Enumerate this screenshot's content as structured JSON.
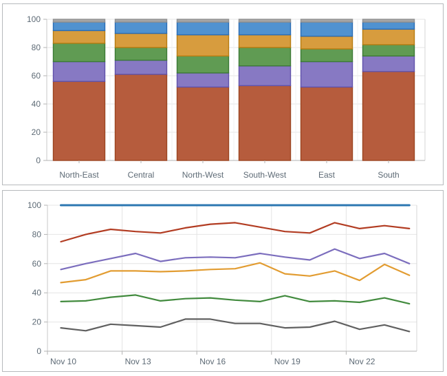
{
  "page": {
    "background": "#ffffff",
    "panel_border": "#b6b9bc",
    "label_color": "#5d6a75",
    "grid_color": "#e4e4e4",
    "axis_color": "#b3b3b3"
  },
  "chart_data": [
    {
      "type": "bar",
      "stacked": true,
      "title": "",
      "xlabel": "",
      "ylabel": "",
      "ylim": [
        0,
        100
      ],
      "yticks": [
        0,
        20,
        40,
        60,
        80,
        100
      ],
      "grid": true,
      "legend": false,
      "categories": [
        "North-East",
        "Central",
        "North-West",
        "South-West",
        "East",
        "South"
      ],
      "series": [
        {
          "name": "brown",
          "color": "#b65c3d",
          "border": "#9c4521",
          "values": [
            56,
            61,
            52,
            53,
            52,
            63
          ]
        },
        {
          "name": "purple",
          "color": "#8779c3",
          "border": "#6052aa",
          "values": [
            14,
            10,
            10,
            14,
            18,
            11
          ]
        },
        {
          "name": "green",
          "color": "#609b53",
          "border": "#3c7a36",
          "values": [
            13,
            9,
            12,
            13,
            9,
            8
          ]
        },
        {
          "name": "orange",
          "color": "#d79c3e",
          "border": "#b77c11",
          "values": [
            9,
            10,
            15,
            9,
            9,
            11
          ]
        },
        {
          "name": "blue",
          "color": "#5092d0",
          "border": "#2b6cb3",
          "values": [
            6,
            8,
            9,
            9,
            10,
            5
          ]
        },
        {
          "name": "gray",
          "color": "#a6a6a6",
          "border": "#909090",
          "values": [
            2,
            2,
            2,
            2,
            2,
            2
          ]
        }
      ]
    },
    {
      "type": "line",
      "title": "",
      "xlabel": "",
      "ylabel": "",
      "ylim": [
        0,
        100
      ],
      "yticks": [
        0,
        20,
        40,
        60,
        80,
        100
      ],
      "grid": true,
      "legend": false,
      "x_days": [
        10,
        11,
        12,
        13,
        14,
        15,
        16,
        17,
        18,
        19,
        20,
        21,
        22,
        23,
        24
      ],
      "xtick_days": [
        10,
        13,
        16,
        19,
        22
      ],
      "xtick_labels": [
        "Nov 10",
        "Nov 13",
        "Nov 16",
        "Nov 19",
        "Nov 22"
      ],
      "series": [
        {
          "name": "blue",
          "color": "#2c77b2",
          "width": 3,
          "values": [
            100,
            100,
            100,
            100,
            100,
            100,
            100,
            100,
            100,
            100,
            100,
            100,
            100,
            100,
            100
          ]
        },
        {
          "name": "red",
          "color": "#b23c22",
          "width": 2.2,
          "values": [
            75,
            80,
            83.5,
            82,
            81,
            84.5,
            87,
            88,
            85,
            82,
            81,
            88,
            84,
            86,
            84
          ]
        },
        {
          "name": "purple",
          "color": "#7b6dbd",
          "width": 2.2,
          "values": [
            56,
            60,
            63.5,
            67,
            61.5,
            64,
            64.5,
            64,
            67,
            64.5,
            62.5,
            70,
            63.5,
            67,
            60
          ]
        },
        {
          "name": "orange",
          "color": "#e29c31",
          "width": 2.2,
          "values": [
            47,
            49,
            55,
            55,
            54.5,
            55,
            56,
            56.5,
            60.5,
            53,
            51.5,
            55,
            48.5,
            59.5,
            52
          ]
        },
        {
          "name": "green",
          "color": "#418a3d",
          "width": 2.2,
          "values": [
            34,
            34.5,
            37,
            38.5,
            34.5,
            36,
            36.5,
            35,
            34,
            38,
            34,
            34.5,
            33.5,
            36.5,
            32.5
          ]
        },
        {
          "name": "gray",
          "color": "#606060",
          "width": 2.2,
          "values": [
            16,
            14,
            18.5,
            17.5,
            16.5,
            22,
            22,
            19,
            19,
            16,
            16.5,
            20.5,
            15,
            18,
            13.5
          ]
        }
      ]
    }
  ]
}
